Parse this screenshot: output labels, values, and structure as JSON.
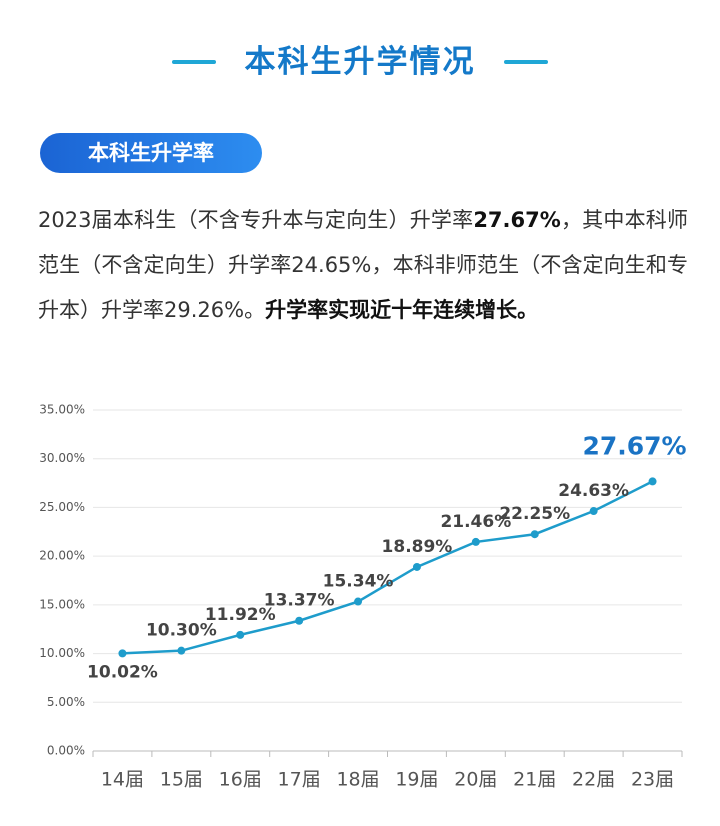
{
  "header": {
    "title": "本科生升学情况"
  },
  "section": {
    "tag": "本科生升学率",
    "paragraph": [
      {
        "text": "2023届本科生（不含专升本与定向生）升学率",
        "bold": false
      },
      {
        "text": "27.67%",
        "bold": true
      },
      {
        "text": "，其中本科师范生（不含定向生）升学率24.65%，本科非师范生（不含定向生和专升本）升学率29.26%。",
        "bold": false
      },
      {
        "text": "升学率实现近十年连续增长。",
        "bold": true
      }
    ]
  },
  "chart_data": {
    "type": "line",
    "categories": [
      "14届",
      "15届",
      "16届",
      "17届",
      "18届",
      "19届",
      "20届",
      "21届",
      "22届",
      "23届"
    ],
    "series": [
      {
        "color": "#1e9ccb",
        "values": [
          10.02,
          10.3,
          11.92,
          13.37,
          15.34,
          18.89,
          21.46,
          22.25,
          24.63,
          27.67
        ],
        "value_labels": [
          "10.02%",
          "10.30%",
          "11.92%",
          "13.37%",
          "15.34%",
          "18.89%",
          "21.46%",
          "22.25%",
          "24.63%",
          "27.67%"
        ]
      }
    ],
    "ylim": [
      0,
      35
    ],
    "yticks": [
      {
        "value": 0,
        "label": "0.00%"
      },
      {
        "value": 5,
        "label": "5.00%"
      },
      {
        "value": 10,
        "label": "10.00%"
      },
      {
        "value": 15,
        "label": "15.00%"
      },
      {
        "value": 20,
        "label": "20.00%"
      },
      {
        "value": 25,
        "label": "25.00%"
      },
      {
        "value": 30,
        "label": "30.00%"
      },
      {
        "value": 35,
        "label": "35.00%"
      }
    ],
    "grid": true
  }
}
